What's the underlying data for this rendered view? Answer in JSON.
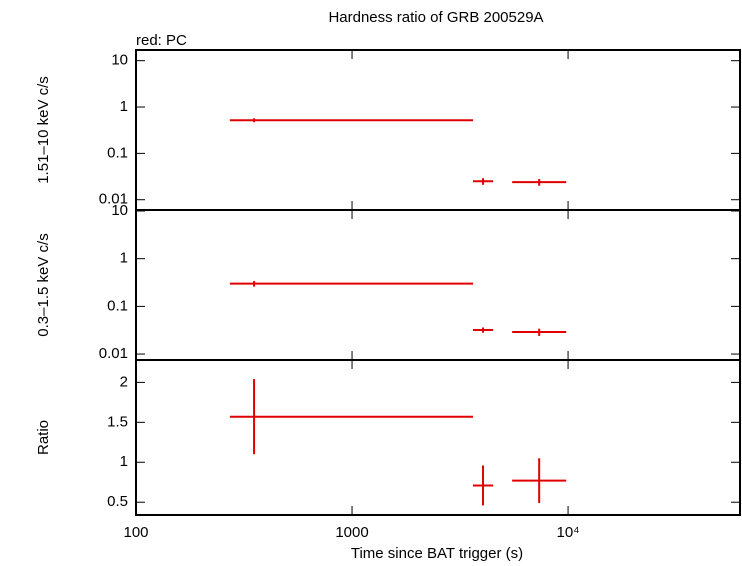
{
  "chart_data": [
    {
      "type": "scatter",
      "title": "Hardness ratio of GRB 200529A",
      "subtitle": "red: PC",
      "y_label": "1.51–10 keV c/s",
      "log_y": true,
      "ylim": [
        0.006,
        17
      ],
      "yticks": [
        0.01,
        0.1,
        1,
        10
      ],
      "log_x": true,
      "xlim": [
        100,
        62500
      ],
      "series": [
        {
          "color": "#e00000",
          "x": [
            352,
            4040,
            7350
          ],
          "xerr_minus": [
            80,
            410,
            1840
          ],
          "xerr_plus": [
            3280,
            460,
            2450
          ],
          "values": [
            0.52,
            0.025,
            0.024
          ],
          "yerr": [
            0.05,
            0.004,
            0.004
          ]
        }
      ]
    },
    {
      "type": "scatter",
      "y_label": "0.3–1.5 keV c/s",
      "log_y": true,
      "ylim": [
        0.0075,
        10.5
      ],
      "yticks": [
        0.01,
        0.1,
        1,
        10
      ],
      "log_x": true,
      "xlim": [
        100,
        62500
      ],
      "series": [
        {
          "color": "#e00000",
          "x": [
            352,
            4040,
            7350
          ],
          "xerr_minus": [
            80,
            410,
            1840
          ],
          "xerr_plus": [
            3280,
            460,
            2450
          ],
          "values": [
            0.3,
            0.032,
            0.029
          ],
          "yerr": [
            0.04,
            0.004,
            0.005
          ]
        }
      ]
    },
    {
      "type": "scatter",
      "y_label": "Ratio",
      "x_label": "Time since BAT trigger (s)",
      "log_y": false,
      "ylim": [
        0.34,
        2.28
      ],
      "yticks": [
        0.5,
        1,
        1.5,
        2
      ],
      "log_x": true,
      "xlim": [
        100,
        62500
      ],
      "xticks": [
        100,
        1000,
        {
          "value": 10000,
          "label": "10⁴"
        }
      ],
      "series": [
        {
          "color": "#e00000",
          "x": [
            352,
            4040,
            7350
          ],
          "xerr_minus": [
            80,
            410,
            1840
          ],
          "xerr_plus": [
            3280,
            460,
            2450
          ],
          "values": [
            1.57,
            0.71,
            0.77
          ],
          "yerr": [
            0.47,
            0.25,
            0.28
          ]
        }
      ]
    }
  ]
}
